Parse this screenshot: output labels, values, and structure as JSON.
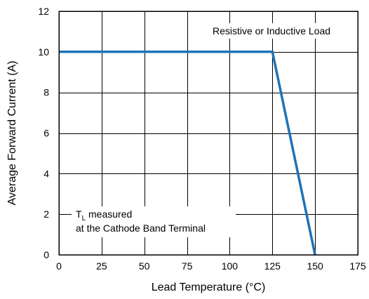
{
  "chart_data": {
    "type": "line",
    "xlabel": "Lead Temperature (°C)",
    "ylabel": "Average Forward Current (A)",
    "xlim": [
      0,
      175
    ],
    "ylim": [
      0,
      12
    ],
    "x_ticks": [
      0,
      25,
      50,
      75,
      100,
      125,
      150,
      175
    ],
    "y_ticks": [
      0,
      2,
      4,
      6,
      8,
      10,
      12
    ],
    "x_tick_labels": [
      "0",
      "25",
      "50",
      "75",
      "100",
      "125",
      "150",
      "175"
    ],
    "y_tick_labels": [
      "0",
      "2",
      "4",
      "6",
      "8",
      "10",
      "12"
    ],
    "grid": true,
    "series": [
      {
        "x": [
          0,
          125,
          150
        ],
        "y": [
          10,
          10,
          0
        ],
        "color": "#1f72b8"
      }
    ],
    "annotations": {
      "load_type": "Resistive or Inductive Load",
      "tl_main": "T",
      "tl_sub": "L",
      "tl_rest": " measured",
      "tl_line2": "at the Cathode Band Terminal"
    }
  }
}
